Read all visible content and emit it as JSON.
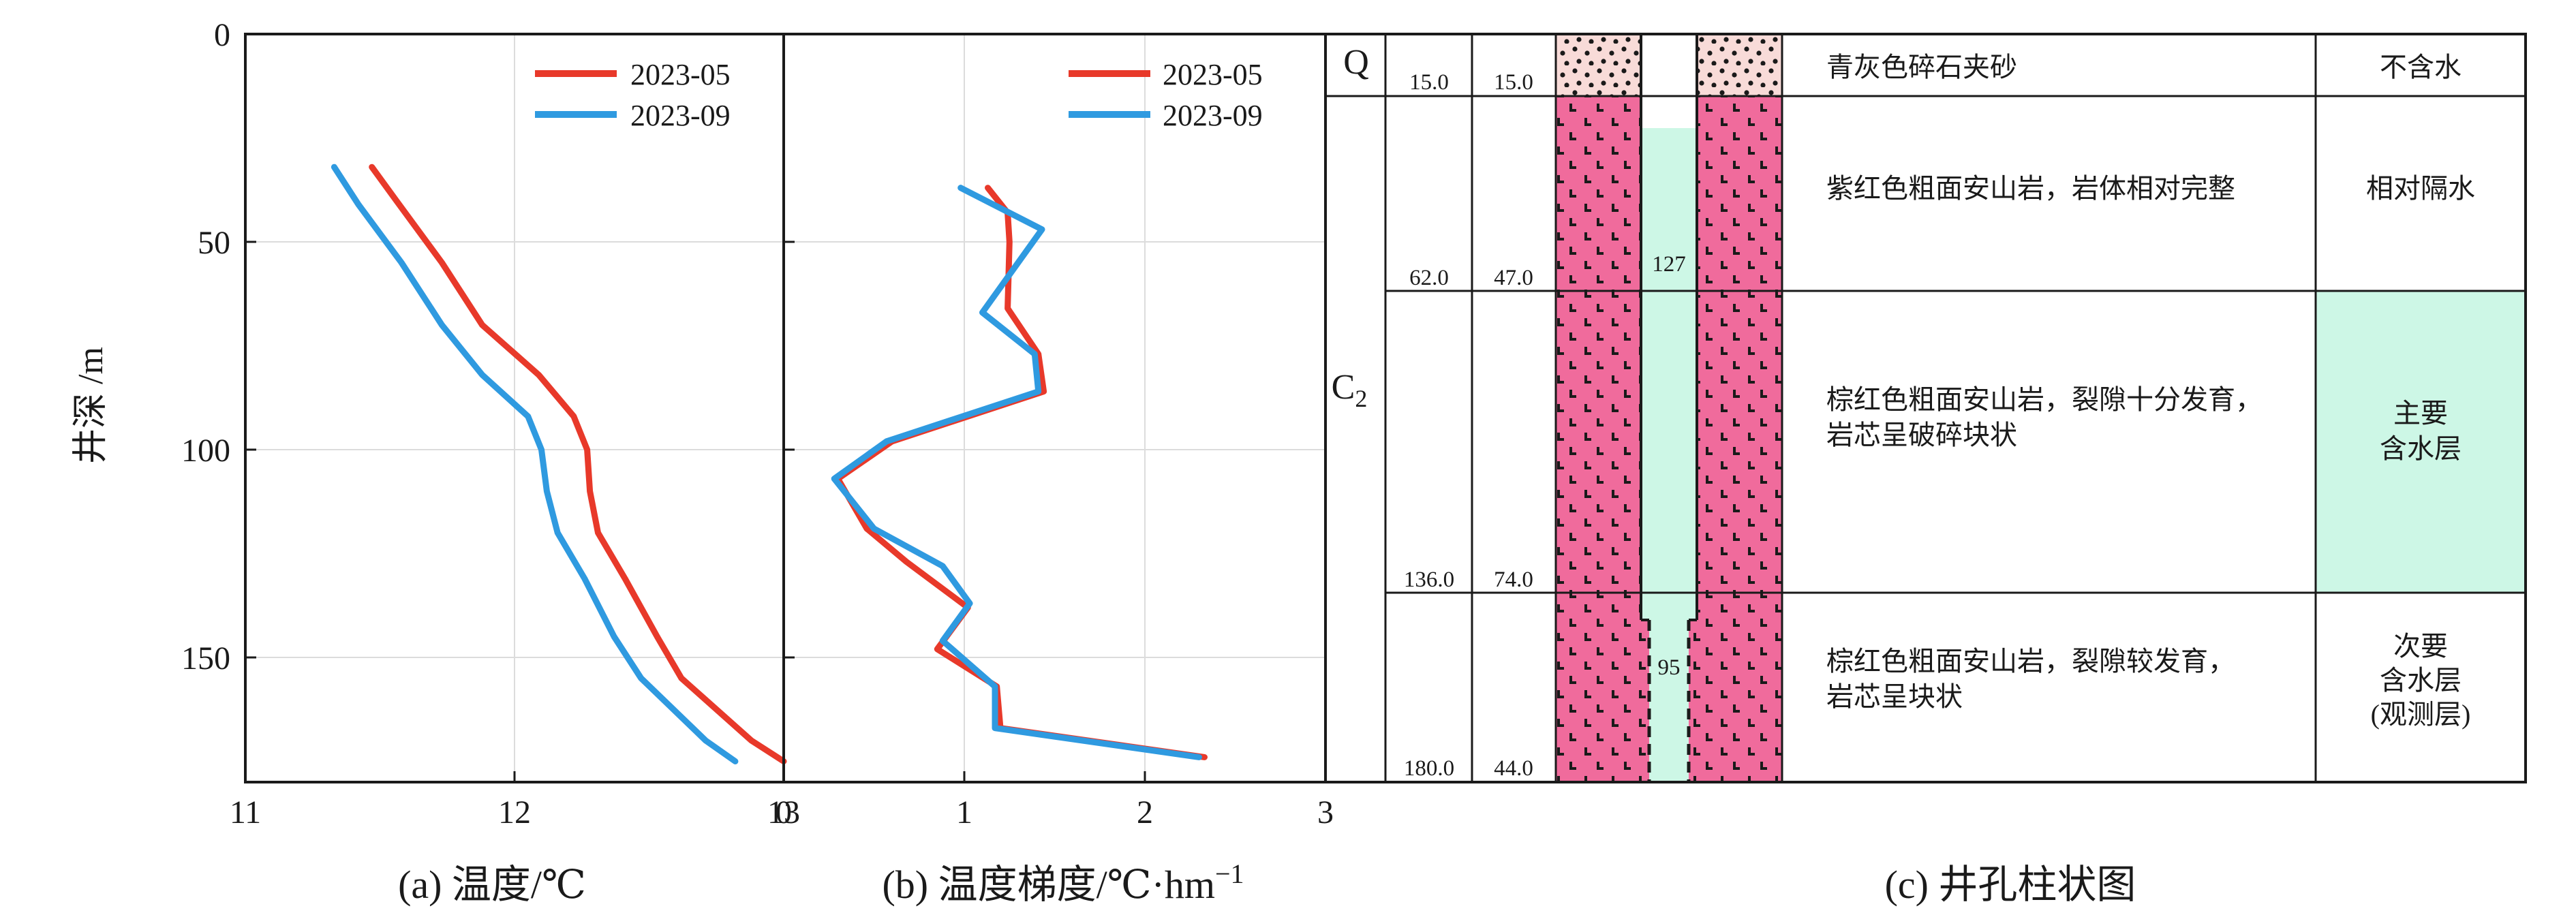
{
  "chart_data": [
    {
      "type": "line",
      "caption": "(a) 温度/℃",
      "ylabel": "井深 /m",
      "xlim": [
        11,
        13
      ],
      "ylim": [
        0,
        180
      ],
      "x_ticks": [
        "11",
        "12",
        "13"
      ],
      "y_ticks": [
        "0",
        "50",
        "100",
        "150"
      ],
      "legend_placement": "top-right",
      "series": [
        {
          "name": "2023-05",
          "color": "#e8392a",
          "x": [
            11.47,
            11.56,
            11.73,
            11.88,
            12.09,
            12.22,
            12.27,
            12.28,
            12.31,
            12.41,
            12.53,
            12.62,
            12.88,
            13.0
          ],
          "y": [
            32,
            40,
            55,
            70,
            82,
            92,
            100,
            110,
            120,
            131,
            145,
            155,
            170,
            175
          ]
        },
        {
          "name": "2023-09",
          "color": "#2f9ae0",
          "x": [
            11.33,
            11.42,
            11.58,
            11.73,
            11.88,
            12.05,
            12.1,
            12.12,
            12.16,
            12.26,
            12.37,
            12.47,
            12.71,
            12.82
          ],
          "y": [
            32,
            41,
            55,
            70,
            82,
            92,
            100,
            110,
            120,
            131,
            145,
            155,
            170,
            175
          ]
        }
      ]
    },
    {
      "type": "line",
      "caption": "(b) 温度梯度/℃·hm",
      "caption_sup": "−1",
      "xlim": [
        0,
        3
      ],
      "ylim": [
        0,
        180
      ],
      "x_ticks": [
        "0",
        "1",
        "2",
        "3"
      ],
      "legend_placement": "top-right",
      "series": [
        {
          "name": "2023-05",
          "color": "#e8392a",
          "x": [
            1.13,
            1.24,
            1.25,
            1.24,
            1.41,
            1.44,
            0.6,
            0.3,
            0.46,
            0.68,
            1.02,
            0.85,
            1.18,
            1.2,
            2.33
          ],
          "y": [
            37,
            43,
            50,
            66,
            77,
            86,
            98,
            107,
            119,
            127,
            138,
            148,
            157,
            167,
            174
          ]
        },
        {
          "name": "2023-09",
          "color": "#2f9ae0",
          "x": [
            0.98,
            1.43,
            1.1,
            1.39,
            1.41,
            0.57,
            0.28,
            0.5,
            0.88,
            1.03,
            0.88,
            1.17,
            1.17,
            2.3
          ],
          "y": [
            37,
            47,
            67,
            77,
            86,
            98,
            107,
            119,
            128,
            137,
            146,
            157,
            167,
            174
          ]
        }
      ]
    }
  ],
  "column": {
    "caption": "(c) 井孔柱状图",
    "strat": [
      {
        "code": "Q",
        "sub": ""
      },
      {
        "code": "C",
        "sub": "2"
      }
    ],
    "layers": [
      {
        "bottom": 15,
        "depth_label": "15.0",
        "thick_label": "15.0",
        "lith": [
          "青灰色碎石夹砂"
        ],
        "water": [
          "不含水"
        ],
        "aquifer": false
      },
      {
        "bottom": 62,
        "depth_label": "62.0",
        "thick_label": "47.0",
        "lith": [
          "紫红色粗面安山岩，岩体相对完整"
        ],
        "water": [
          "相对隔水"
        ],
        "aquifer": false
      },
      {
        "bottom": 136,
        "depth_label": "136.0",
        "thick_label": "74.0",
        "lith": [
          "棕红色粗面安山岩，裂隙十分发育，",
          "岩芯呈破碎块状"
        ],
        "water": [
          "主要",
          "含水层"
        ],
        "aquifer": true
      },
      {
        "bottom": 180,
        "depth_label": "180.0",
        "thick_label": "44.0",
        "lith": [
          "棕红色粗面安山岩，裂隙较发育，",
          "岩芯呈块状"
        ],
        "water": [
          "次要",
          "含水层",
          "(观测层)"
        ],
        "aquifer": false
      }
    ],
    "casing_labels": [
      "127",
      "95"
    ],
    "colors": {
      "bedrock": "#f06b9c",
      "gravel": "#f8dbd8",
      "aquifer": "#cdf7e6",
      "well": "#cdf7e6"
    }
  }
}
